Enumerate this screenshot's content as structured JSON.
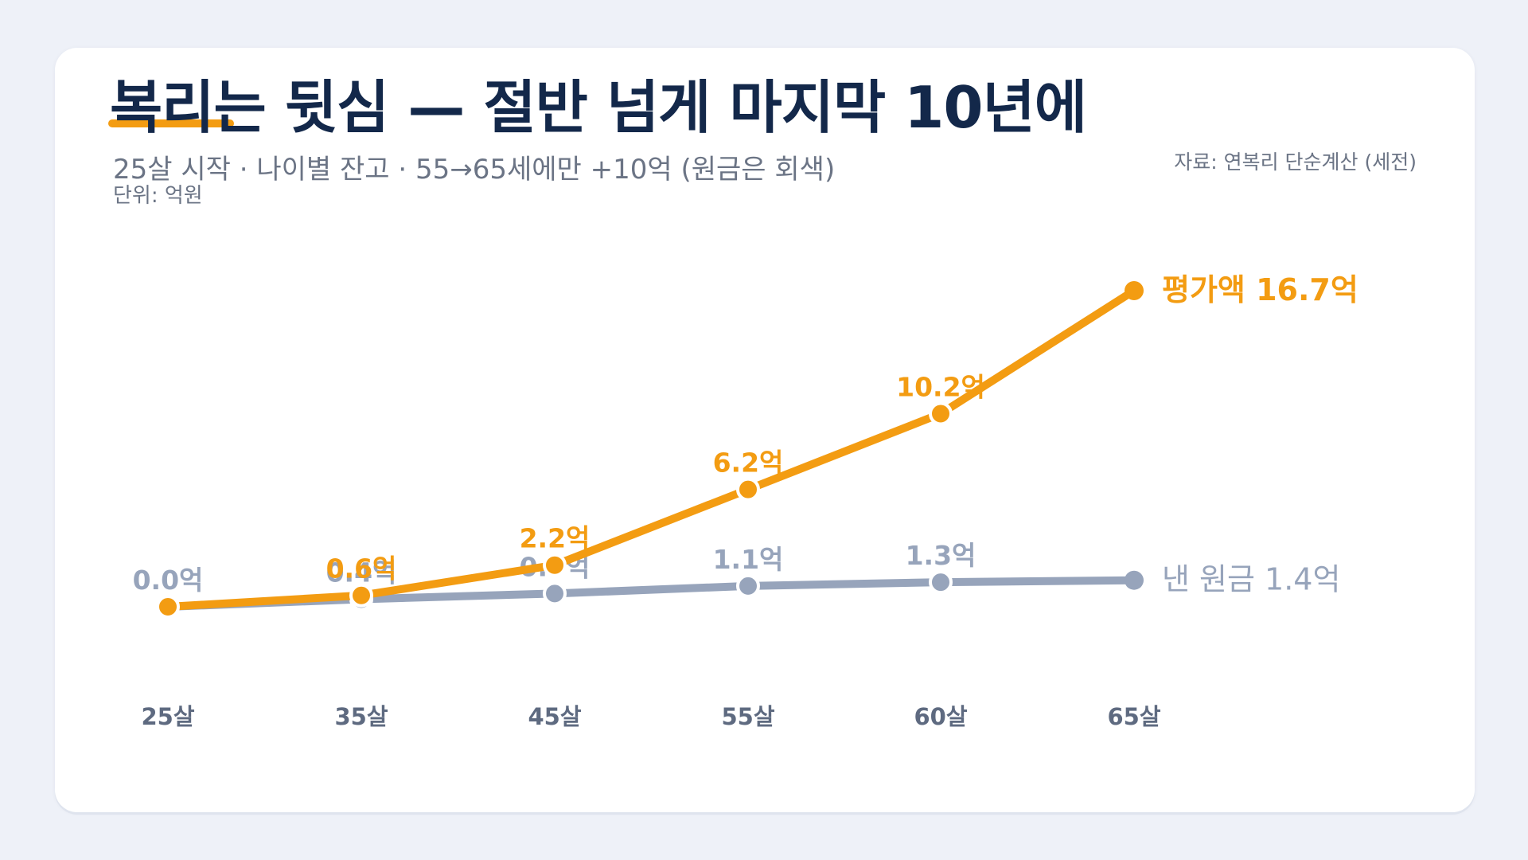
{
  "header": {
    "title": "복리는 뒷심 — 절반 넘게 마지막 10년에",
    "subtitle": "25살 시작 · 나이별 잔고 · 55→65세에만 +10억 (원금은 회색)",
    "unit": "단위: 억원",
    "source": "자료: 연복리 단순계산 (세전)"
  },
  "colors": {
    "accent": "#f39c12",
    "principal": "#97a4bb",
    "title": "#13284a",
    "muted": "#6b7485",
    "axis_label": "#5e6a80"
  },
  "chart_data": {
    "type": "line",
    "categories": [
      "25살",
      "35살",
      "45살",
      "55살",
      "60살",
      "65살"
    ],
    "series": [
      {
        "name": "평가액",
        "end_label": "평가액 16.7억",
        "color": "#f39c12",
        "values": [
          0.0,
          0.6,
          2.2,
          6.2,
          10.2,
          16.7
        ],
        "labels": [
          "",
          "0.6억",
          "2.2억",
          "6.2억",
          "10.2억",
          ""
        ]
      },
      {
        "name": "낸 원금",
        "end_label": "낸 원금 1.4억",
        "color": "#97a4bb",
        "values": [
          0.0,
          0.4,
          0.7,
          1.1,
          1.3,
          1.4
        ],
        "labels": [
          "0.0억",
          "0.4억",
          "0.7억",
          "1.1억",
          "1.3억",
          ""
        ]
      }
    ],
    "xlabel": "",
    "ylabel": "",
    "ylim": [
      0,
      16.7
    ],
    "grid": false,
    "legend": "end-of-line labels"
  }
}
